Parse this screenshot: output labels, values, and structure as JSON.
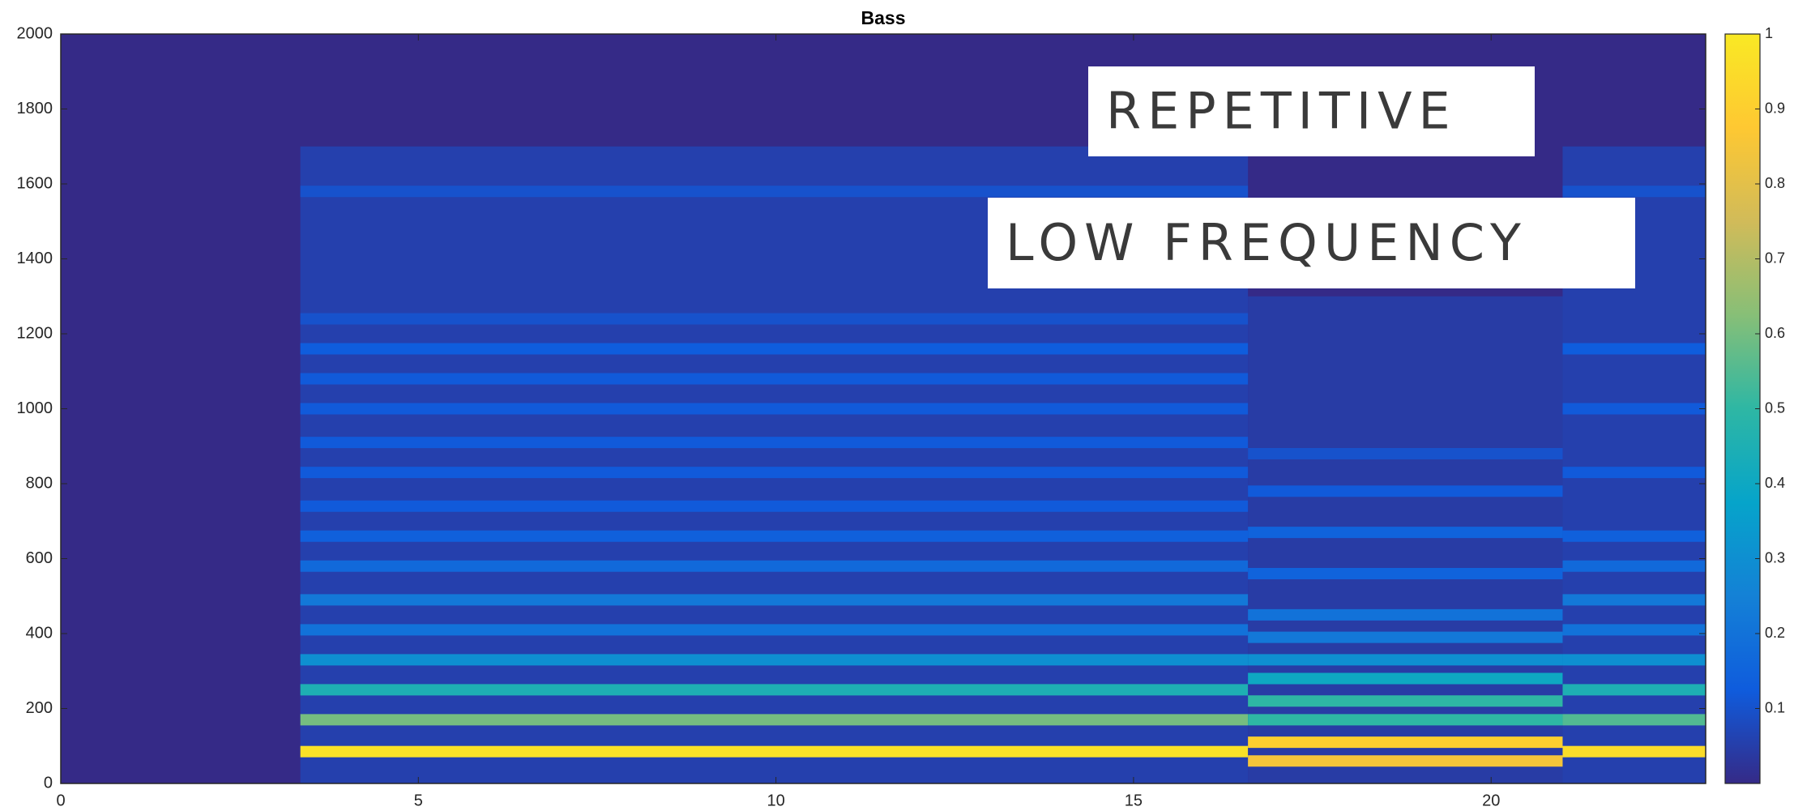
{
  "chart_data": {
    "type": "spectrogram",
    "title": "Bass",
    "xlim": [
      0,
      23
    ],
    "xticks": [
      0,
      5,
      10,
      15,
      20
    ],
    "ylim": [
      0,
      2000
    ],
    "yticks": [
      0,
      200,
      400,
      600,
      800,
      1000,
      1200,
      1400,
      1600,
      1800,
      2000
    ],
    "background": 0,
    "colormap": [
      "#352a87",
      "#0f5cdd",
      "#1481d6",
      "#06a4ca",
      "#2eb7a4",
      "#87bf77",
      "#d1bb59",
      "#fec832",
      "#f9e924"
    ],
    "clim": [
      0,
      1
    ],
    "cticks": [
      0.1,
      0.2,
      0.3,
      0.4,
      0.5,
      0.6,
      0.7,
      0.8,
      0.9,
      1
    ],
    "segments": [
      {
        "start": 3.35,
        "end": 16.6,
        "floor": 0.1,
        "top": 1700,
        "lines": [
          {
            "freq": 85,
            "value": 0.97
          },
          {
            "freq": 170,
            "value": 0.6
          },
          {
            "freq": 250,
            "value": 0.45
          },
          {
            "freq": 330,
            "value": 0.3
          },
          {
            "freq": 410,
            "value": 0.2
          },
          {
            "freq": 490,
            "value": 0.22
          },
          {
            "freq": 580,
            "value": 0.17
          },
          {
            "freq": 660,
            "value": 0.14
          },
          {
            "freq": 740,
            "value": 0.12
          },
          {
            "freq": 830,
            "value": 0.12
          },
          {
            "freq": 910,
            "value": 0.12
          },
          {
            "freq": 1000,
            "value": 0.12
          },
          {
            "freq": 1080,
            "value": 0.12
          },
          {
            "freq": 1160,
            "value": 0.13
          },
          {
            "freq": 1240,
            "value": 0.1
          },
          {
            "freq": 1580,
            "value": 0.1
          }
        ]
      },
      {
        "start": 16.6,
        "end": 21,
        "floor": 0.08,
        "top": 1300,
        "lines": [
          {
            "freq": 60,
            "value": 0.85
          },
          {
            "freq": 110,
            "value": 0.9
          },
          {
            "freq": 170,
            "value": 0.5
          },
          {
            "freq": 220,
            "value": 0.5
          },
          {
            "freq": 280,
            "value": 0.4
          },
          {
            "freq": 330,
            "value": 0.3
          },
          {
            "freq": 390,
            "value": 0.22
          },
          {
            "freq": 450,
            "value": 0.2
          },
          {
            "freq": 560,
            "value": 0.15
          },
          {
            "freq": 670,
            "value": 0.15
          },
          {
            "freq": 780,
            "value": 0.12
          },
          {
            "freq": 880,
            "value": 0.1
          }
        ]
      },
      {
        "start": 21,
        "end": 23,
        "floor": 0.1,
        "top": 1700,
        "lines": [
          {
            "freq": 85,
            "value": 0.95
          },
          {
            "freq": 170,
            "value": 0.55
          },
          {
            "freq": 250,
            "value": 0.45
          },
          {
            "freq": 330,
            "value": 0.3
          },
          {
            "freq": 410,
            "value": 0.2
          },
          {
            "freq": 490,
            "value": 0.22
          },
          {
            "freq": 580,
            "value": 0.17
          },
          {
            "freq": 660,
            "value": 0.14
          },
          {
            "freq": 830,
            "value": 0.12
          },
          {
            "freq": 1000,
            "value": 0.12
          },
          {
            "freq": 1160,
            "value": 0.13
          },
          {
            "freq": 1580,
            "value": 0.1
          }
        ]
      }
    ],
    "annotations": [
      "REPETITIVE",
      "LOW FREQUENCY"
    ]
  }
}
